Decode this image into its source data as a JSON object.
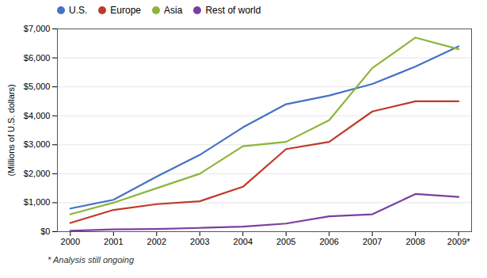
{
  "chart_data": {
    "type": "line",
    "x": [
      2000,
      2001,
      2002,
      2003,
      2004,
      2005,
      2006,
      2007,
      2008,
      2009
    ],
    "series": [
      {
        "name": "U.S.",
        "color": "#4472C4",
        "values": [
          800,
          1100,
          1900,
          2650,
          3600,
          4400,
          4700,
          5100,
          5700,
          6400
        ]
      },
      {
        "name": "Europe",
        "color": "#C0392B",
        "values": [
          300,
          750,
          950,
          1050,
          1550,
          2850,
          3100,
          4150,
          4500,
          4500
        ]
      },
      {
        "name": "Asia",
        "color": "#8DB43A",
        "values": [
          600,
          1000,
          1500,
          2000,
          2950,
          3100,
          3850,
          5650,
          6700,
          6300
        ]
      },
      {
        "name": "Rest of world",
        "color": "#7B3FA0",
        "values": [
          30,
          80,
          90,
          130,
          175,
          280,
          530,
          600,
          1300,
          1200
        ]
      }
    ],
    "ylabel": "(Millions of U.S. dollars)",
    "xlim": [
      1999.7,
      2009.3
    ],
    "xticks": [
      2000,
      2001,
      2002,
      2003,
      2004,
      2005,
      2006,
      2007,
      2008,
      {
        "value": 2009,
        "label": "2009*"
      }
    ],
    "ylim": [
      0,
      7000
    ],
    "yticks": [
      {
        "value": 0,
        "label": "$0"
      },
      {
        "value": 1000,
        "label": "$1,000"
      },
      {
        "value": 2000,
        "label": "$2,000"
      },
      {
        "value": 3000,
        "label": "$3,000"
      },
      {
        "value": 4000,
        "label": "$4,000"
      },
      {
        "value": 5000,
        "label": "$5,000"
      },
      {
        "value": 6000,
        "label": "$6,000"
      },
      {
        "value": 7000,
        "label": "$7,000"
      }
    ],
    "grid": true,
    "legend": "upper left",
    "annotations": [
      "* Analysis still ongoing"
    ]
  }
}
